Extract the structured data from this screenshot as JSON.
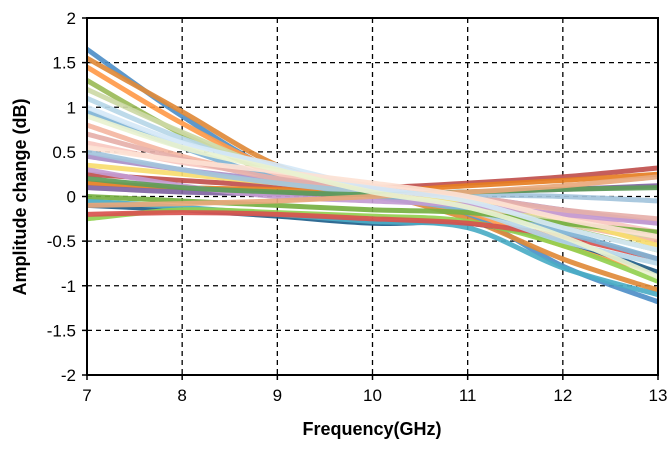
{
  "chart_data": {
    "type": "line",
    "title": "",
    "xlabel": "Frequency(GHz)",
    "ylabel": "Amplitude change (dB)",
    "xlim": [
      7,
      13
    ],
    "ylim": [
      -2,
      2
    ],
    "xticks": [
      "7",
      "8",
      "9",
      "10",
      "11",
      "12",
      "13"
    ],
    "yticks": [
      "2",
      "1.5",
      "1",
      "0.5",
      "0",
      "-0.5",
      "-1",
      "-1.5",
      "-2"
    ],
    "xtick_values": [
      7,
      8,
      9,
      10,
      11,
      12,
      13
    ],
    "ytick_values": [
      2,
      1.5,
      1,
      0.5,
      0,
      -0.5,
      -1,
      -1.5,
      -2
    ],
    "grid": true,
    "legend": "none",
    "x": [
      7,
      8,
      9,
      10,
      11,
      12,
      13
    ],
    "series": [
      {
        "color": "#4f8fc8",
        "values": [
          1.65,
          0.9,
          0.28,
          0.02,
          -0.2,
          -0.78,
          -1.18
        ]
      },
      {
        "color": "#e08a3a",
        "values": [
          1.55,
          0.95,
          0.35,
          0.05,
          -0.25,
          -0.7,
          -1.05
        ]
      },
      {
        "color": "#ff9a4a",
        "values": [
          1.45,
          0.82,
          0.3,
          0.04,
          -0.18,
          -0.55,
          -0.85
        ]
      },
      {
        "color": "#9bbb59",
        "values": [
          1.3,
          0.7,
          0.25,
          0.02,
          -0.12,
          -0.35,
          -0.6
        ]
      },
      {
        "color": "#c0504d",
        "values": [
          0.25,
          0.18,
          0.12,
          0.1,
          0.15,
          0.22,
          0.32
        ]
      },
      {
        "color": "#e67e22",
        "values": [
          0.15,
          0.1,
          0.08,
          0.06,
          0.12,
          0.18,
          0.25
        ]
      },
      {
        "color": "#8064a2",
        "values": [
          0.1,
          0.05,
          0.03,
          0.02,
          0.05,
          0.08,
          0.12
        ]
      },
      {
        "color": "#1f5f8b",
        "values": [
          -0.1,
          -0.15,
          -0.22,
          -0.3,
          -0.3,
          -0.5,
          -0.85
        ]
      },
      {
        "color": "#4bacc6",
        "values": [
          -0.05,
          -0.12,
          -0.2,
          -0.28,
          -0.35,
          -0.8,
          -1.1
        ]
      },
      {
        "color": "#92d050",
        "values": [
          -0.25,
          -0.15,
          -0.18,
          -0.22,
          -0.28,
          -0.55,
          -0.95
        ]
      },
      {
        "color": "#d9534f",
        "values": [
          -0.2,
          -0.18,
          -0.2,
          -0.25,
          -0.3,
          -0.45,
          -0.7
        ]
      },
      {
        "color": "#f4b6a2",
        "values": [
          0.8,
          0.45,
          0.22,
          0.05,
          -0.1,
          -0.3,
          -0.5
        ]
      },
      {
        "color": "#b7d7e8",
        "values": [
          1.1,
          0.65,
          0.32,
          0.06,
          -0.15,
          -0.5,
          -0.75
        ]
      },
      {
        "color": "#cdd9a6",
        "values": [
          1.2,
          0.72,
          0.3,
          0.05,
          -0.08,
          -0.3,
          -0.45
        ]
      },
      {
        "color": "#aa8fc8",
        "values": [
          0.45,
          0.3,
          0.18,
          0.1,
          0.0,
          -0.15,
          -0.3
        ]
      },
      {
        "color": "#f8c8c0",
        "values": [
          0.6,
          0.38,
          0.25,
          0.12,
          -0.02,
          -0.2,
          -0.4
        ]
      },
      {
        "color": "#7fb3d5",
        "values": [
          0.95,
          0.55,
          0.2,
          0.0,
          -0.15,
          -0.4,
          -0.7
        ]
      },
      {
        "color": "#f7dc6f",
        "values": [
          0.35,
          0.25,
          0.15,
          0.05,
          -0.05,
          -0.25,
          -0.55
        ]
      },
      {
        "color": "#76b041",
        "values": [
          0.0,
          -0.05,
          -0.1,
          -0.15,
          -0.18,
          -0.3,
          -0.4
        ]
      },
      {
        "color": "#c39bd3",
        "values": [
          0.3,
          0.12,
          0.0,
          -0.05,
          -0.1,
          -0.2,
          -0.3
        ]
      },
      {
        "color": "#e6b0aa",
        "values": [
          0.7,
          0.42,
          0.2,
          0.08,
          0.0,
          -0.15,
          -0.25
        ]
      },
      {
        "color": "#a3c4dc",
        "values": [
          0.5,
          0.3,
          0.15,
          0.05,
          0.02,
          0.0,
          -0.05
        ]
      },
      {
        "color": "#5d9c59",
        "values": [
          0.2,
          0.1,
          0.05,
          0.02,
          0.05,
          0.08,
          0.1
        ]
      },
      {
        "color": "#e8a87c",
        "values": [
          -0.1,
          -0.08,
          -0.05,
          0.0,
          0.05,
          0.12,
          0.22
        ]
      },
      {
        "color": "#d5e8f7",
        "values": [
          1.0,
          0.6,
          0.35,
          0.1,
          -0.05,
          -0.35,
          -0.6
        ]
      },
      {
        "color": "#fde2d4",
        "values": [
          0.55,
          0.4,
          0.28,
          0.15,
          0.0,
          -0.25,
          -0.45
        ]
      },
      {
        "color": "#e9f2d0",
        "values": [
          0.9,
          0.55,
          0.3,
          0.05,
          -0.12,
          -0.45,
          -0.9
        ]
      }
    ]
  }
}
